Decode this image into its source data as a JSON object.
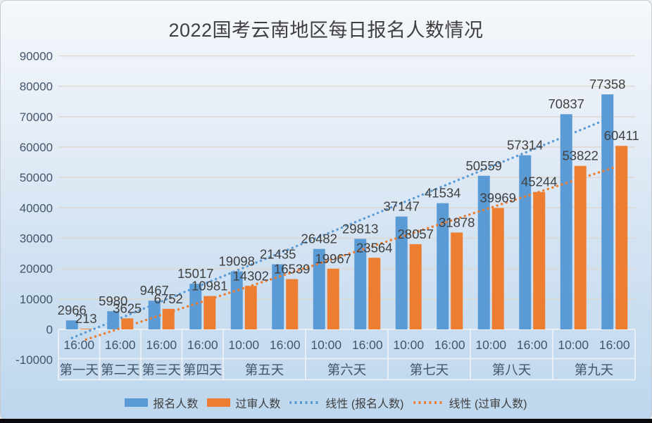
{
  "title": "2022国考云南地区每日报名人数情况",
  "colors": {
    "registered_series": "#5B9BD5",
    "approved_series": "#ED7D31",
    "title_text": "#3f3f3f",
    "axis_text": "#44546A",
    "data_label_text": "#404040",
    "gridline": "#ddd8d0",
    "table_border": "#e9eef4",
    "background_top": "#f5f8fc",
    "background_bottom": "#bdd7ee"
  },
  "chart_data": {
    "type": "bar",
    "title": "2022国考云南地区每日报名人数情况",
    "x_axis": {
      "type": "multi-level",
      "day_groups": [
        {
          "label": "第一天",
          "times": [
            "16:00"
          ]
        },
        {
          "label": "第二天",
          "times": [
            "16:00"
          ]
        },
        {
          "label": "第三天",
          "times": [
            "16:00"
          ]
        },
        {
          "label": "第四天",
          "times": [
            "16:00"
          ]
        },
        {
          "label": "第五天",
          "times": [
            "10:00",
            "16:00"
          ]
        },
        {
          "label": "第六天",
          "times": [
            "10:00",
            "16:00"
          ]
        },
        {
          "label": "第七天",
          "times": [
            "10:00",
            "16:00"
          ]
        },
        {
          "label": "第八天",
          "times": [
            "10:00",
            "16:00"
          ]
        },
        {
          "label": "第九天",
          "times": [
            "10:00",
            "16:00"
          ]
        }
      ]
    },
    "series": [
      {
        "name": "报名人数",
        "color": "#5B9BD5",
        "values": [
          2966,
          5980,
          9467,
          15017,
          19098,
          21435,
          26482,
          29813,
          37147,
          41534,
          50559,
          57314,
          70837,
          77358
        ]
      },
      {
        "name": "过审人数",
        "color": "#ED7D31",
        "values": [
          213,
          3625,
          6752,
          10981,
          14302,
          16539,
          19967,
          23564,
          28057,
          31878,
          39969,
          45244,
          53822,
          60411
        ]
      }
    ],
    "trendlines": [
      {
        "name": "线性 (报名人数)",
        "series_index": 0,
        "style": "dotted",
        "color": "#5B9BD5"
      },
      {
        "name": "线性 (过审人数)",
        "series_index": 1,
        "style": "dotted",
        "color": "#ED7D31"
      }
    ],
    "y_axis": {
      "min": -10000,
      "max": 90000,
      "step": 10000
    },
    "grid": true,
    "data_labels": true,
    "legend_position": "bottom"
  },
  "legend": {
    "items": [
      {
        "label": "报名人数",
        "swatch": "bar",
        "color": "#5B9BD5"
      },
      {
        "label": "过审人数",
        "swatch": "bar",
        "color": "#ED7D31"
      },
      {
        "label": "线性 (报名人数)",
        "swatch": "dotted-line",
        "color": "#5B9BD5"
      },
      {
        "label": "线性 (过审人数)",
        "swatch": "dotted-line",
        "color": "#ED7D31"
      }
    ]
  }
}
